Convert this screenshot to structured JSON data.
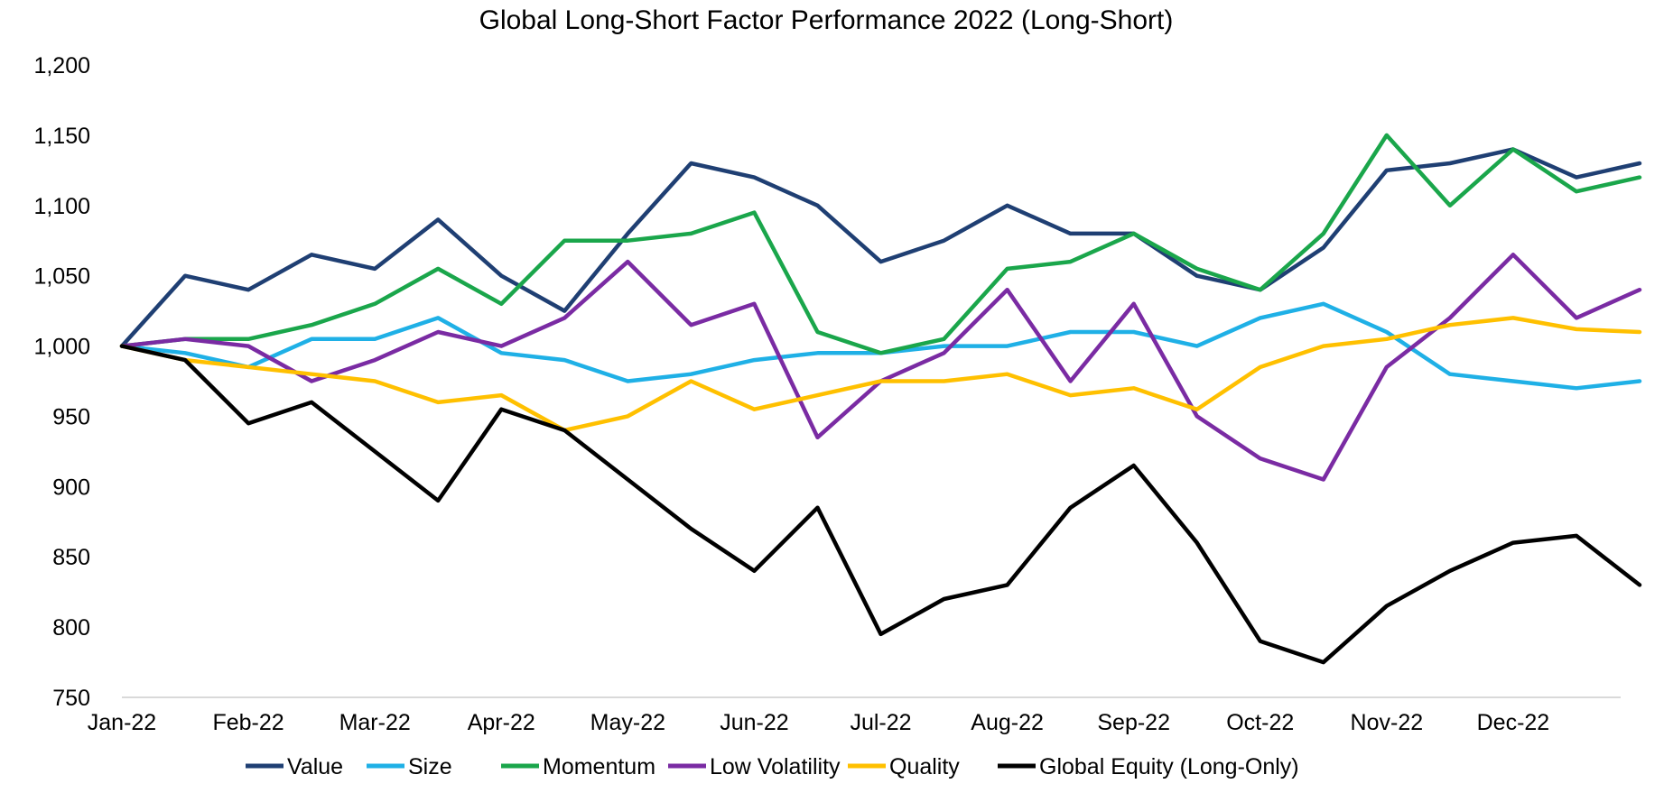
{
  "chart_data": {
    "type": "line",
    "title": "Global Long-Short Factor Performance 2022 (Long-Short)",
    "xlabel": "",
    "ylabel": "",
    "ylim": [
      750,
      1200
    ],
    "yticks": [
      "750",
      "800",
      "850",
      "900",
      "950",
      "1,000",
      "1,050",
      "1,100",
      "1,150",
      "1,200"
    ],
    "xticks": [
      "Jan-22",
      "Feb-22",
      "Mar-22",
      "Apr-22",
      "May-22",
      "Jun-22",
      "Jul-22",
      "Aug-22",
      "Sep-22",
      "Oct-22",
      "Nov-22",
      "Dec-22"
    ],
    "x_points": [
      "Jan-22",
      "mid-Jan",
      "Feb-22",
      "mid-Feb",
      "Mar-22",
      "mid-Mar",
      "Apr-22",
      "mid-Apr",
      "May-22",
      "mid-May",
      "Jun-22",
      "mid-Jun",
      "Jul-22",
      "mid-Jul",
      "Aug-22",
      "mid-Aug",
      "Sep-22",
      "mid-Sep",
      "Oct-22",
      "mid-Oct",
      "Nov-22",
      "mid-Nov",
      "Dec-22",
      "mid-Dec",
      "End-Dec"
    ],
    "grid": false,
    "legend_position": "bottom",
    "series": [
      {
        "name": "Value",
        "color": "#1F3F73",
        "values": [
          1000,
          1050,
          1040,
          1065,
          1055,
          1090,
          1050,
          1025,
          1080,
          1130,
          1120,
          1100,
          1060,
          1075,
          1100,
          1080,
          1080,
          1050,
          1040,
          1070,
          1125,
          1130,
          1140,
          1120,
          1130
        ]
      },
      {
        "name": "Size",
        "color": "#1FB0E6",
        "values": [
          1000,
          995,
          985,
          1005,
          1005,
          1020,
          995,
          990,
          975,
          980,
          990,
          995,
          995,
          1000,
          1000,
          1010,
          1010,
          1000,
          1020,
          1030,
          1010,
          980,
          975,
          970,
          975
        ]
      },
      {
        "name": "Momentum",
        "color": "#1AA64B",
        "values": [
          1000,
          1005,
          1005,
          1015,
          1030,
          1055,
          1030,
          1075,
          1075,
          1080,
          1095,
          1010,
          995,
          1005,
          1055,
          1060,
          1080,
          1055,
          1040,
          1080,
          1150,
          1100,
          1140,
          1110,
          1120
        ]
      },
      {
        "name": "Low Volatility",
        "color": "#7A2BA3",
        "values": [
          1000,
          1005,
          1000,
          975,
          990,
          1010,
          1000,
          1020,
          1060,
          1015,
          1030,
          935,
          975,
          995,
          1040,
          975,
          1030,
          950,
          920,
          905,
          985,
          1020,
          1065,
          1020,
          1040
        ]
      },
      {
        "name": "Quality",
        "color": "#FFC000",
        "values": [
          1000,
          990,
          985,
          980,
          975,
          960,
          965,
          940,
          950,
          975,
          955,
          965,
          975,
          975,
          980,
          965,
          970,
          955,
          985,
          1000,
          1005,
          1015,
          1020,
          1012,
          1010
        ]
      },
      {
        "name": "Global Equity (Long-Only)",
        "color": "#000000",
        "values": [
          1000,
          990,
          945,
          960,
          925,
          890,
          955,
          940,
          905,
          870,
          840,
          885,
          795,
          820,
          830,
          885,
          915,
          860,
          790,
          775,
          815,
          840,
          860,
          865,
          830
        ]
      }
    ]
  }
}
